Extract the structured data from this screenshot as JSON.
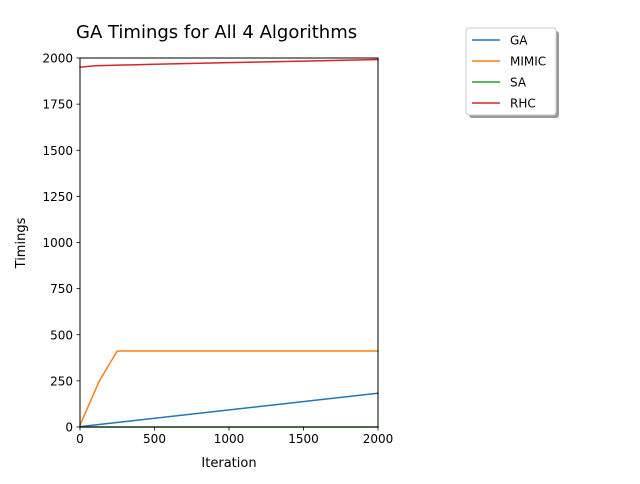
{
  "chart_data": {
    "type": "line",
    "title": "GA Timings for All 4 Algorithms",
    "xlabel": "Iteration",
    "ylabel": "Timings",
    "xlim": [
      0,
      2000
    ],
    "ylim": [
      0,
      2000
    ],
    "xticks": [
      0,
      500,
      1000,
      1500,
      2000
    ],
    "yticks": [
      0,
      250,
      500,
      750,
      1000,
      1250,
      1500,
      1750,
      2000
    ],
    "grid": false,
    "legend_position": "outside-top-right",
    "series": [
      {
        "name": "GA",
        "color": "#1f77b4",
        "x": [
          0,
          2000
        ],
        "y": [
          2,
          183
        ]
      },
      {
        "name": "MIMIC",
        "color": "#ff7f0e",
        "x": [
          0,
          130,
          250,
          2000
        ],
        "y": [
          10,
          250,
          412,
          412
        ]
      },
      {
        "name": "SA",
        "color": "#2ca02c",
        "x": [
          0,
          2000
        ],
        "y": [
          0,
          0
        ]
      },
      {
        "name": "RHC",
        "color": "#d62728",
        "x": [
          0,
          100,
          500,
          1000,
          1500,
          2000
        ],
        "y": [
          1950,
          1958,
          1966,
          1975,
          1983,
          1992
        ]
      }
    ]
  }
}
